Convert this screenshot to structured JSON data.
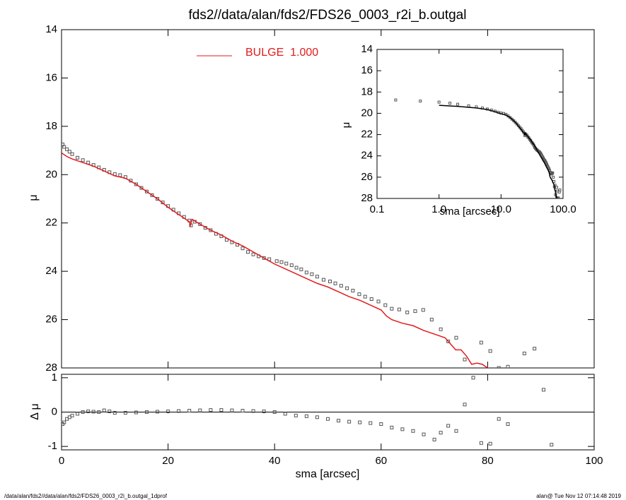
{
  "chart_data": [
    {
      "type": "scatter",
      "title": "fds2//data/alan/fds2/FDS26_0003_r2i_b.outgal",
      "ylabel": "μ",
      "ylim": [
        14,
        28
      ],
      "y_inverted": true,
      "yticks": [
        14,
        16,
        18,
        20,
        22,
        24,
        26,
        28
      ],
      "legend": "top",
      "series": [
        {
          "style": "points",
          "color": "#555555",
          "x": [
            0.2,
            0.5,
            1,
            1.5,
            2,
            3,
            4,
            5,
            6,
            7,
            8,
            9,
            10,
            11,
            12,
            13,
            14,
            15,
            16,
            17,
            18,
            19,
            20,
            21,
            22,
            23,
            24,
            24.3,
            25,
            26,
            27,
            28,
            29,
            30,
            31,
            32,
            33,
            34,
            35,
            36,
            37,
            38,
            39,
            40.4,
            41.3,
            42.2,
            43.2,
            44.1,
            45,
            46,
            47,
            48,
            49.2,
            50.4,
            51.4,
            52.5,
            53.6,
            54.7,
            55.9,
            57,
            58.2,
            59.5,
            60.8,
            62,
            63.4,
            64.9,
            66.4,
            67.9,
            69.5,
            71.2,
            72.6,
            74.1,
            75.7,
            78.8,
            80.5,
            82.1,
            83.8,
            86.9,
            88.8
          ],
          "values": [
            18.75,
            18.85,
            18.95,
            19.05,
            19.15,
            19.3,
            19.4,
            19.5,
            19.6,
            19.7,
            19.8,
            19.9,
            19.98,
            20.02,
            20.1,
            20.25,
            20.4,
            20.55,
            20.7,
            20.85,
            21.0,
            21.15,
            21.3,
            21.45,
            21.6,
            21.75,
            21.9,
            22.1,
            21.95,
            22.05,
            22.2,
            22.3,
            22.45,
            22.55,
            22.7,
            22.8,
            22.9,
            23.05,
            23.2,
            23.3,
            23.38,
            23.45,
            23.5,
            23.58,
            23.62,
            23.68,
            23.75,
            23.85,
            23.92,
            24.05,
            24.12,
            24.22,
            24.35,
            24.42,
            24.5,
            24.6,
            24.7,
            24.8,
            24.95,
            25.05,
            25.15,
            25.25,
            25.4,
            25.55,
            25.58,
            25.7,
            25.65,
            25.6,
            26.0,
            26.4,
            26.9,
            26.75,
            27.65,
            26.95,
            27.3,
            28.0,
            27.95,
            27.4,
            27.2
          ]
        },
        {
          "style": "line",
          "name": "BULGE  1.000",
          "color": "#e41a1c",
          "x": [
            0,
            1,
            2,
            4,
            6,
            8,
            10,
            12,
            14,
            16,
            18,
            20,
            22,
            24,
            24.2,
            24.5,
            26,
            28,
            30,
            32,
            34,
            36,
            38,
            40,
            42,
            44,
            46,
            48,
            50,
            52,
            54,
            56,
            58,
            60,
            61,
            62,
            64,
            66,
            68,
            70,
            72,
            73,
            74,
            75,
            76,
            77,
            78,
            79,
            80,
            81
          ],
          "values": [
            19.1,
            19.25,
            19.35,
            19.5,
            19.65,
            19.85,
            20.05,
            20.15,
            20.4,
            20.7,
            21.0,
            21.35,
            21.65,
            21.95,
            22.1,
            21.85,
            22.05,
            22.3,
            22.5,
            22.75,
            22.95,
            23.2,
            23.45,
            23.7,
            23.9,
            24.1,
            24.3,
            24.5,
            24.65,
            24.85,
            25.05,
            25.2,
            25.4,
            25.6,
            25.85,
            26.0,
            26.15,
            26.25,
            26.45,
            26.6,
            26.75,
            27.0,
            27.25,
            27.25,
            27.5,
            27.85,
            27.8,
            27.85,
            28.0,
            28.1
          ]
        }
      ]
    },
    {
      "type": "scatter",
      "ylabel": "Δ μ",
      "xlabel": "sma [arcsec]",
      "xlim": [
        0,
        100
      ],
      "xticks": [
        0,
        20,
        40,
        60,
        80,
        100
      ],
      "ylim": [
        -1.1,
        1.1
      ],
      "yticks": [
        -1,
        0,
        1
      ],
      "hline": 0,
      "series": [
        {
          "style": "points",
          "color": "#555555",
          "x": [
            0.2,
            0.5,
            1,
            1.5,
            2,
            3,
            4,
            5,
            6,
            7,
            8,
            9,
            10,
            12,
            14,
            16,
            18,
            20,
            22,
            24,
            26,
            28,
            30,
            32,
            34,
            36,
            38,
            40,
            42,
            44,
            46,
            48,
            50,
            52,
            54,
            56,
            58,
            60,
            62,
            64,
            66,
            68,
            70,
            71.2,
            72.6,
            74.1,
            75.7,
            77.3,
            78.8,
            80.5,
            82.1,
            83.8,
            90.5,
            92
          ],
          "values": [
            -0.35,
            -0.3,
            -0.2,
            -0.15,
            -0.1,
            -0.05,
            0,
            0.02,
            0.01,
            0,
            0.05,
            0.02,
            -0.02,
            -0.02,
            -0.01,
            0,
            0.01,
            0.02,
            0.03,
            0.04,
            0.05,
            0.06,
            0.06,
            0.05,
            0.04,
            0.03,
            0.02,
            0,
            -0.05,
            -0.1,
            -0.12,
            -0.15,
            -0.2,
            -0.25,
            -0.28,
            -0.3,
            -0.32,
            -0.35,
            -0.45,
            -0.5,
            -0.55,
            -0.65,
            -0.8,
            -0.6,
            -0.4,
            -0.55,
            0.22,
            1.0,
            -0.9,
            -0.92,
            -0.2,
            -0.35,
            0.65,
            -0.95
          ]
        }
      ]
    },
    {
      "type": "scatter",
      "xlabel": "sma [arcsec]",
      "ylabel": "μ",
      "xlog": true,
      "xlim": [
        0.1,
        100
      ],
      "xticks": [
        0.1,
        {
          "value": 1,
          "label": "1.0"
        },
        {
          "value": 10,
          "label": "10.0"
        },
        {
          "value": 100,
          "label": "100.0"
        }
      ],
      "ylim": [
        14,
        28
      ],
      "y_inverted": true,
      "yticks": [
        14,
        16,
        18,
        20,
        22,
        24,
        26,
        28
      ],
      "line_color": "#000000"
    }
  ],
  "footer": {
    "left": "/data/alan/fds2//data/alan/fds2/FDS26_0003_r2i_b.outgal_1dprof",
    "right": "alan@  Tue Nov 12 07:14:48 2019"
  }
}
